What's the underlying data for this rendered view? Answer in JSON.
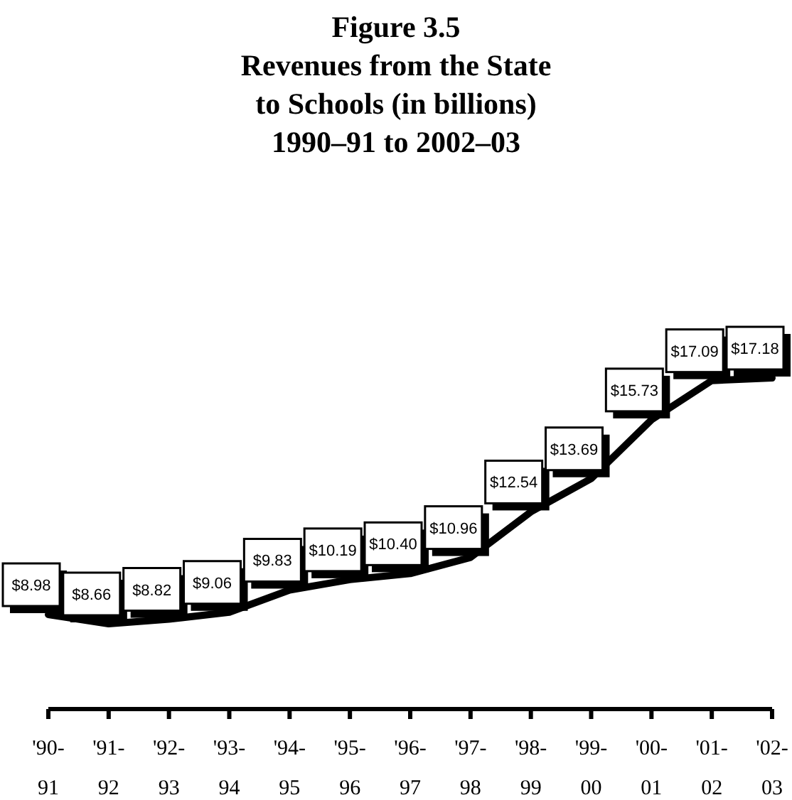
{
  "chart_data": {
    "type": "line",
    "title": "Figure 3.5",
    "subtitle": "Revenues from the State\nto Schools (in billions)\n1990–91 to 2002–03",
    "categories": [
      "'90-91",
      "'91-92",
      "'92-93",
      "'93-94",
      "'94-95",
      "'95-96",
      "'96-97",
      "'97-98",
      "'98-99",
      "'99-00",
      "'00-01",
      "'01-02",
      "'02-03"
    ],
    "series": [
      {
        "color": "#000000",
        "values": [
          8.98,
          8.66,
          8.82,
          9.06,
          9.83,
          10.19,
          10.4,
          10.96,
          12.54,
          13.69,
          15.73,
          17.09,
          17.18
        ],
        "value_labels": [
          "$8.98",
          "$8.66",
          "$8.82",
          "$9.06",
          "$9.83",
          "$10.19",
          "$10.40",
          "$10.96",
          "$12.54",
          "$13.69",
          "$15.73",
          "$17.09",
          "$17.18"
        ]
      }
    ],
    "marker": "none",
    "line_style": "solid"
  }
}
